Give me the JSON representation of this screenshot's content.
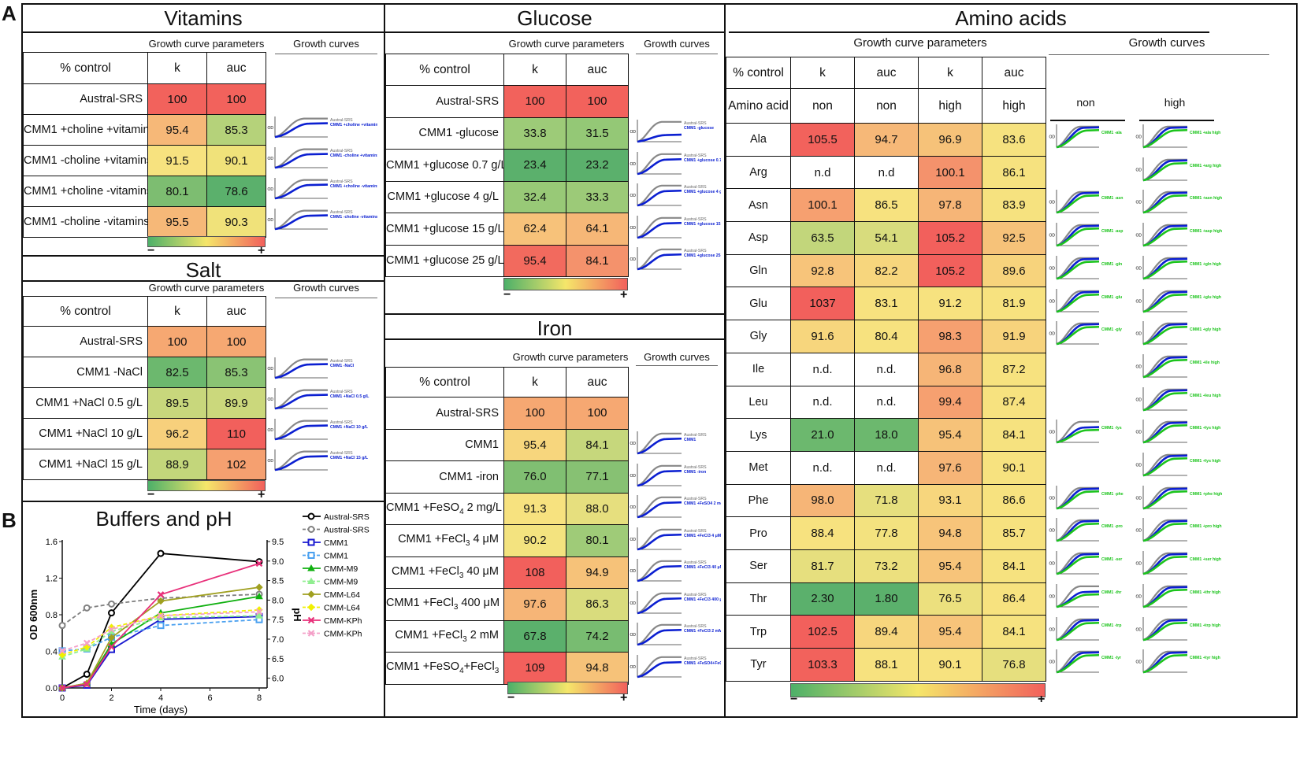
{
  "letters": {
    "a": "A",
    "b": "B"
  },
  "common": {
    "gcp": "Growth curve parameters",
    "gc": "Growth curves",
    "pct": "% control",
    "k": "k",
    "auc": "auc",
    "minus": "−",
    "plus": "+",
    "days": "Days",
    "od": "OD600nm"
  },
  "colors": {
    "low": "#4db069",
    "mid": "#f5e66a",
    "high": "#f2605c",
    "blue": "#0b1fd1",
    "green": "#1cc41c",
    "grey": "#888888"
  },
  "vitamins": {
    "title": "Vitamins",
    "rows": [
      {
        "label": "Austral-SRS",
        "k": "100",
        "auc": "100",
        "ck": "#f2625c",
        "ca": "#f2625c"
      },
      {
        "label": "CMM1 +choline +vitamins",
        "k": "95.4",
        "auc": "85.3",
        "ck": "#f6b878",
        "ca": "#b5d27a",
        "c1": "Austral-SRS",
        "c2": "CMM1 +choline +vitamins"
      },
      {
        "label": "CMM1 -choline +vitamins",
        "k": "91.5",
        "auc": "90.1",
        "ck": "#f7e27f",
        "ca": "#f0e27a",
        "c1": "Austral-SRS",
        "c2": "CMM1 -choline +vitamins"
      },
      {
        "label": "CMM1 +choline -vitamins",
        "k": "80.1",
        "auc": "78.6",
        "ck": "#7dbd71",
        "ca": "#5bb06c",
        "c1": "Austral-SRS",
        "c2": "CMM1 +choline -vitamins"
      },
      {
        "label": "CMM1 -choline -vitamins",
        "k": "95.5",
        "auc": "90.3",
        "ck": "#f6b878",
        "ca": "#f0e27a",
        "c1": "Austral-SRS",
        "c2": "CMM1 -choline -vitamins"
      }
    ]
  },
  "salt": {
    "title": "Salt",
    "rows": [
      {
        "label": "Austral-SRS",
        "k": "100",
        "auc": "100",
        "ck": "#f6a872",
        "ca": "#f6a872"
      },
      {
        "label": "CMM1 -NaCl",
        "k": "82.5",
        "auc": "85.3",
        "ck": "#6cb86e",
        "ca": "#8ac374",
        "c1": "Austral-SRS",
        "c2": "CMM1 -NaCl"
      },
      {
        "label": "CMM1 +NaCl 0.5 g/L",
        "k": "89.5",
        "auc": "89.9",
        "ck": "#c8d77c",
        "ca": "#cbd87c",
        "c1": "Austral-SRS",
        "c2": "CMM1 +NaCl 0.5 g/L"
      },
      {
        "label": "CMM1 +NaCl 10 g/L",
        "k": "96.2",
        "auc": "110",
        "ck": "#f7d07c",
        "ca": "#f2605c",
        "c1": "Austral-SRS",
        "c2": "CMM1 +NaCl 10 g/L"
      },
      {
        "label": "CMM1 +NaCl 15 g/L",
        "k": "88.9",
        "auc": "102",
        "ck": "#c3d67b",
        "ca": "#f5a070",
        "c1": "Austral-SRS",
        "c2": "CMM1 +NaCl 15 g/L"
      }
    ]
  },
  "glucose": {
    "title": "Glucose",
    "rows": [
      {
        "label": "Austral-SRS",
        "k": "100",
        "auc": "100",
        "ck": "#f2625c",
        "ca": "#f2625c"
      },
      {
        "label": "CMM1 -glucose",
        "k": "33.8",
        "auc": "31.5",
        "ck": "#9dcb78",
        "ca": "#94c876",
        "c1": "Austral-SRS",
        "c2": "CMM1 -glucose"
      },
      {
        "label": "CMM1 +glucose 0.7 g/L",
        "k": "23.4",
        "auc": "23.2",
        "ck": "#5bb06c",
        "ca": "#5bb06c",
        "c1": "Austral-SRS",
        "c2": "CMM1 +glucose 0.7 g/L"
      },
      {
        "label": "CMM1 +glucose 4 g/L",
        "k": "32.4",
        "auc": "33.3",
        "ck": "#98c977",
        "ca": "#9cca78",
        "c1": "Austral-SRS",
        "c2": "CMM1 +glucose 4 g/L"
      },
      {
        "label": "CMM1 +glucose 15 g/L",
        "k": "62.4",
        "auc": "64.1",
        "ck": "#f7c27a",
        "ca": "#f6b777",
        "c1": "Austral-SRS",
        "c2": "CMM1 +glucose 15 g/L"
      },
      {
        "label": "CMM1 +glucose 25 g/L",
        "k": "95.4",
        "auc": "84.1",
        "ck": "#f26a5e",
        "ca": "#f4926c",
        "c1": "Austral-SRS",
        "c2": "CMM1 +glucose 25 g/L"
      }
    ]
  },
  "iron": {
    "title": "Iron",
    "rows": [
      {
        "label": "Austral-SRS",
        "k": "100",
        "auc": "100",
        "ck": "#f6a872",
        "ca": "#f6a872"
      },
      {
        "label": "CMM1",
        "k": "95.4",
        "auc": "84.1",
        "ck": "#f7d67d",
        "ca": "#c6d77c",
        "c1": "Austral-SRS",
        "c2": "CMM1"
      },
      {
        "label": "CMM1 -iron",
        "k": "76.0",
        "auc": "77.1",
        "ck": "#80bf72",
        "ca": "#87c173",
        "c1": "Austral-SRS",
        "c2": "CMM1 -iron"
      },
      {
        "label": "CMM1 +FeSO",
        "sub": "4",
        "rest": " 2 mg/L",
        "k": "91.3",
        "auc": "88.0",
        "ck": "#f7e27f",
        "ca": "#e6df7e",
        "c1": "Austral-SRS",
        "c2": "CMM1 +FeSO4 2 mg/L"
      },
      {
        "label": "CMM1 +FeCl",
        "sub": "3",
        "rest": " 4 μM",
        "k": "90.2",
        "auc": "80.1",
        "ck": "#f3e37f",
        "ca": "#9fcb78",
        "c1": "Austral-SRS",
        "c2": "CMM1 +FeCl3 4 μM"
      },
      {
        "label": "CMM1 +FeCl",
        "sub": "3",
        "rest": " 40 μM",
        "k": "108",
        "auc": "94.9",
        "ck": "#f2605c",
        "ca": "#f6c279",
        "c1": "Austral-SRS",
        "c2": "CMM1 +FeCl3 40 μM"
      },
      {
        "label": "CMM1 +FeCl",
        "sub": "3",
        "rest": " 400 μM",
        "k": "97.6",
        "auc": "86.3",
        "ck": "#f6b577",
        "ca": "#d9dc7d",
        "c1": "Austral-SRS",
        "c2": "CMM1 +FeCl3 400 μM"
      },
      {
        "label": "CMM1 +FeCl",
        "sub": "3",
        "rest": " 2 mM",
        "k": "67.8",
        "auc": "74.2",
        "ck": "#5bb06c",
        "ca": "#78bc71",
        "c1": "Austral-SRS",
        "c2": "CMM1 +FeCl3 2 mM"
      },
      {
        "label": "CMM1 +FeSO",
        "sub": "4",
        "rest": "+FeCl",
        "sub2": "3",
        "k": "109",
        "auc": "94.8",
        "ck": "#f2605c",
        "ca": "#f6c279",
        "c1": "Austral-SRS",
        "c2": "CMM1 +FeSO4+FeCl3"
      }
    ]
  },
  "amino": {
    "title": "Amino acids",
    "col_label": "Amino acid",
    "non": "non",
    "high": "high",
    "rows": [
      {
        "aa": "Ala",
        "kn": "105.5",
        "an": "94.7",
        "kh": "96.9",
        "ah": "83.6",
        "c": [
          "#f2625c",
          "#f6b878",
          "#f6c279",
          "#f6e27f"
        ],
        "cn": "CMM1 -ala",
        "ch": "CMM1 +ala high"
      },
      {
        "aa": "Arg",
        "kn": "n.d",
        "an": "n.d",
        "kh": "100.1",
        "ah": "86.1",
        "c": [
          "#ffffff",
          "#ffffff",
          "#f4926c",
          "#f6e27f"
        ],
        "ch": "CMM1 +arg high"
      },
      {
        "aa": "Asn",
        "kn": "100.1",
        "an": "86.5",
        "kh": "97.8",
        "ah": "83.9",
        "c": [
          "#f6a070",
          "#f7e27f",
          "#f6b577",
          "#f6e27f"
        ],
        "cn": "CMM1 -asn",
        "ch": "CMM1 +asn high"
      },
      {
        "aa": "Asp",
        "kn": "63.5",
        "an": "54.1",
        "kh": "105.2",
        "ah": "92.5",
        "c": [
          "#c2d67b",
          "#d8dc7d",
          "#f2605c",
          "#f6c279"
        ],
        "cn": "CMM1 -asp",
        "ch": "CMM1 +asp high"
      },
      {
        "aa": "Gln",
        "kn": "92.8",
        "an": "82.2",
        "kh": "105.2",
        "ah": "89.6",
        "c": [
          "#f7c47a",
          "#f7d67d",
          "#f2605c",
          "#f7d37c"
        ],
        "cn": "CMM1 -gln",
        "ch": "CMM1 +gln high"
      },
      {
        "aa": "Glu",
        "kn": "1037",
        "an": "83.1",
        "kh": "91.2",
        "ah": "81.9",
        "c": [
          "#f2605c",
          "#f7e27f",
          "#f7e27f",
          "#f7e27f"
        ],
        "cn": "CMM1 -glu",
        "ch": "CMM1 +glu high"
      },
      {
        "aa": "Gly",
        "kn": "91.6",
        "an": "80.4",
        "kh": "98.3",
        "ah": "91.9",
        "c": [
          "#f7d67d",
          "#f7e27f",
          "#f6a070",
          "#f7d37c"
        ],
        "cn": "CMM1 -gly",
        "ch": "CMM1 +gly high"
      },
      {
        "aa": "Ile",
        "kn": "n.d.",
        "an": "n.d.",
        "kh": "96.8",
        "ah": "87.2",
        "c": [
          "#ffffff",
          "#ffffff",
          "#f6b577",
          "#f7e27f"
        ],
        "ch": "CMM1 +ile high"
      },
      {
        "aa": "Leu",
        "kn": "n.d.",
        "an": "n.d.",
        "kh": "99.4",
        "ah": "87.4",
        "c": [
          "#ffffff",
          "#ffffff",
          "#f6a070",
          "#f7e27f"
        ],
        "ch": "CMM1 +leu high"
      },
      {
        "aa": "Lys",
        "kn": "21.0",
        "an": "18.0",
        "kh": "95.4",
        "ah": "84.1",
        "c": [
          "#6cb86e",
          "#6cb86e",
          "#f6c279",
          "#f6e27f"
        ],
        "cn": "CMM1 -lys",
        "ch": "CMM1 +lys high"
      },
      {
        "aa": "Met",
        "kn": "n.d.",
        "an": "n.d.",
        "kh": "97.6",
        "ah": "90.1",
        "c": [
          "#ffffff",
          "#ffffff",
          "#f6b577",
          "#f7e27f"
        ],
        "ch": "CMM1 +lys high"
      },
      {
        "aa": "Phe",
        "kn": "98.0",
        "an": "71.8",
        "kh": "93.1",
        "ah": "86.6",
        "c": [
          "#f6b577",
          "#e6df7e",
          "#f7d67d",
          "#f7e27f"
        ],
        "cn": "CMM1 -phe",
        "ch": "CMM1 +phe high"
      },
      {
        "aa": "Pro",
        "kn": "88.4",
        "an": "77.8",
        "kh": "94.8",
        "ah": "85.7",
        "c": [
          "#f7e27f",
          "#f3e27f",
          "#f7c47a",
          "#f7e27f"
        ],
        "cn": "CMM1 -pro",
        "ch": "CMM1 +pro high"
      },
      {
        "aa": "Ser",
        "kn": "81.7",
        "an": "73.2",
        "kh": "95.4",
        "ah": "84.1",
        "c": [
          "#e6df7e",
          "#ece07e",
          "#f7c47a",
          "#f6e27f"
        ],
        "cn": "CMM1 -ser",
        "ch": "CMM1 +ser high"
      },
      {
        "aa": "Thr",
        "kn": "2.30",
        "an": "1.80",
        "kh": "76.5",
        "ah": "86.4",
        "c": [
          "#5bb06c",
          "#5bb06c",
          "#ece07e",
          "#f7e27f"
        ],
        "cn": "CMM1 -thr",
        "ch": "CMM1 +thr high"
      },
      {
        "aa": "Trp",
        "kn": "102.5",
        "an": "89.4",
        "kh": "95.4",
        "ah": "84.1",
        "c": [
          "#f2605c",
          "#f7d67d",
          "#f7c47a",
          "#f6e27f"
        ],
        "cn": "CMM1 -trp",
        "ch": "CMM1 +trp high"
      },
      {
        "aa": "Tyr",
        "kn": "103.3",
        "an": "88.1",
        "kh": "90.1",
        "ah": "76.8",
        "c": [
          "#f2625c",
          "#f7e27f",
          "#f7e27f",
          "#e6df7e"
        ],
        "cn": "CMM1 -tyr",
        "ch": "CMM1 +tyr high"
      }
    ]
  },
  "chart_data": {
    "type": "line",
    "title": "Buffers and pH",
    "xlabel": "Time (days)",
    "ylabel": "OD 600nm",
    "y2label": "pH",
    "x": [
      0,
      1,
      2,
      4,
      8
    ],
    "xticks": [
      "0",
      "2",
      "4",
      "6",
      "8"
    ],
    "yticks": [
      "0.0",
      "0.4",
      "0.8",
      "1.2",
      "1.6"
    ],
    "y2ticks": [
      "6.0",
      "6.5",
      "7.0",
      "7.5",
      "8.0",
      "8.5",
      "9.0",
      "9.5"
    ],
    "ylim": [
      0,
      1.6
    ],
    "y2lim": [
      5.75,
      9.5
    ],
    "xlim": [
      0,
      8
    ],
    "series": [
      {
        "name": "Austral-SRS",
        "axis": "od",
        "color": "#000000",
        "dash": false,
        "marker": "circle",
        "values": [
          0.0,
          0.15,
          0.82,
          1.47,
          1.38
        ]
      },
      {
        "name": "Austral-SRS",
        "axis": "ph",
        "color": "#808080",
        "dash": true,
        "marker": "circle",
        "values": [
          7.35,
          7.8,
          7.9,
          8.05,
          8.15
        ]
      },
      {
        "name": "CMM1",
        "axis": "od",
        "color": "#1a1ad0",
        "dash": false,
        "marker": "square",
        "values": [
          0.0,
          0.03,
          0.42,
          0.75,
          0.78
        ]
      },
      {
        "name": "CMM1",
        "axis": "ph",
        "color": "#4aa0f0",
        "dash": true,
        "marker": "square",
        "values": [
          6.7,
          6.75,
          7.05,
          7.35,
          7.5
        ]
      },
      {
        "name": "CMM-M9",
        "axis": "od",
        "color": "#10b010",
        "dash": false,
        "marker": "triangle",
        "values": [
          0.0,
          0.05,
          0.48,
          0.82,
          1.0
        ]
      },
      {
        "name": "CMM-M9",
        "axis": "ph",
        "color": "#90ee90",
        "dash": true,
        "marker": "triangle",
        "values": [
          6.55,
          6.75,
          7.2,
          7.55,
          7.6
        ]
      },
      {
        "name": "CMM-L64",
        "axis": "od",
        "color": "#a0a020",
        "dash": false,
        "marker": "diamond",
        "values": [
          0.0,
          0.05,
          0.55,
          0.95,
          1.1
        ]
      },
      {
        "name": "CMM-L64",
        "axis": "ph",
        "color": "#f0f000",
        "dash": true,
        "marker": "diamond",
        "values": [
          6.6,
          6.8,
          7.3,
          7.6,
          7.75
        ]
      },
      {
        "name": "CMM-KPh",
        "axis": "od",
        "color": "#e8307a",
        "dash": false,
        "marker": "x",
        "values": [
          0.0,
          0.04,
          0.45,
          1.02,
          1.36
        ]
      },
      {
        "name": "CMM-KPh",
        "axis": "ph",
        "color": "#f4a0c8",
        "dash": true,
        "marker": "x",
        "values": [
          6.7,
          6.9,
          7.25,
          7.6,
          7.7
        ]
      }
    ]
  }
}
